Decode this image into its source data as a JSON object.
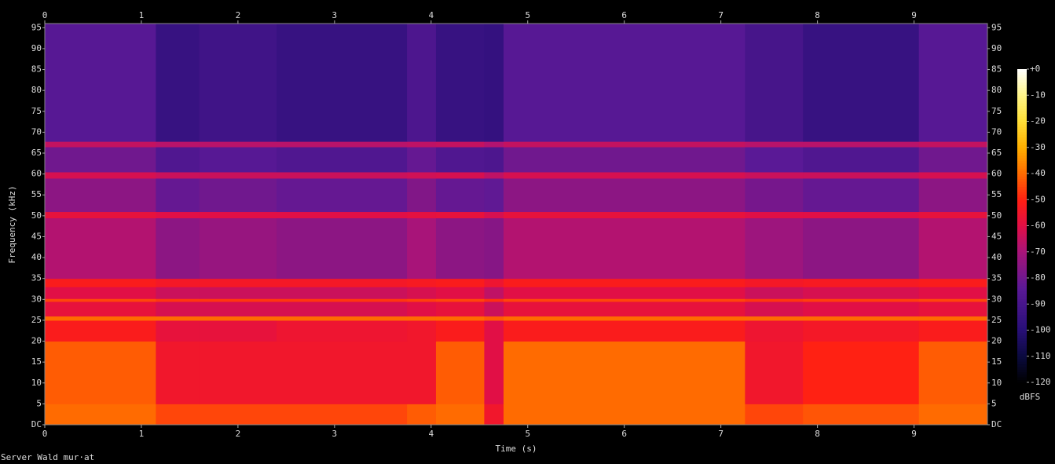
{
  "chart_data": {
    "type": "heatmap",
    "title": "Server Wald mur·at",
    "x_label": "Time (s)",
    "y_label": "Frequency (kHz)",
    "colorbar_label": "dBFS",
    "xlim": [
      0,
      9.76
    ],
    "xticks": [
      0,
      1,
      2,
      3,
      4,
      5,
      6,
      7,
      8,
      9
    ],
    "ylim": [
      0,
      96
    ],
    "yticks": [
      {
        "value": 0,
        "label": "DC"
      },
      5,
      10,
      15,
      20,
      25,
      30,
      35,
      40,
      45,
      50,
      55,
      60,
      65,
      70,
      75,
      80,
      85,
      90,
      95
    ],
    "clim": [
      -120,
      0
    ],
    "cticks": [
      {
        "value": 0,
        "label": "+0"
      },
      -10,
      -20,
      -30,
      -40,
      -50,
      -60,
      -70,
      -80,
      -90,
      -100,
      -110,
      -120
    ],
    "x_bins": [
      0,
      1.15,
      1.6,
      2.4,
      3.75,
      4.05,
      4.55,
      4.75,
      7.25,
      7.85,
      9.05,
      9.76
    ],
    "y_bins": [
      0,
      5,
      20,
      25,
      26,
      29.5,
      30.2,
      33,
      35,
      49.5,
      51,
      59,
      60.5,
      66.5,
      67.8,
      96
    ],
    "z": [
      [
        -40,
        -45,
        -45,
        -45,
        -42,
        -40,
        -55,
        -40,
        -45,
        -43,
        -40
      ],
      [
        -42,
        -55,
        -55,
        -55,
        -55,
        -42,
        -60,
        -40,
        -55,
        -50,
        -42
      ],
      [
        -52,
        -58,
        -58,
        -56,
        -55,
        -52,
        -60,
        -52,
        -56,
        -54,
        -52
      ],
      [
        -40,
        -40,
        -40,
        -40,
        -40,
        -40,
        -42,
        -40,
        -40,
        -40,
        -40
      ],
      [
        -58,
        -62,
        -62,
        -62,
        -60,
        -58,
        -64,
        -58,
        -62,
        -60,
        -58
      ],
      [
        -45,
        -47,
        -47,
        -47,
        -46,
        -45,
        -48,
        -45,
        -47,
        -46,
        -45
      ],
      [
        -60,
        -64,
        -64,
        -64,
        -62,
        -60,
        -66,
        -60,
        -64,
        -62,
        -60
      ],
      [
        -52,
        -54,
        -54,
        -54,
        -53,
        -52,
        -56,
        -52,
        -54,
        -53,
        -52
      ],
      [
        -68,
        -75,
        -73,
        -75,
        -70,
        -75,
        -76,
        -68,
        -72,
        -75,
        -68
      ],
      [
        -58,
        -60,
        -60,
        -60,
        -59,
        -58,
        -62,
        -58,
        -60,
        -60,
        -58
      ],
      [
        -75,
        -82,
        -80,
        -82,
        -77,
        -82,
        -83,
        -75,
        -79,
        -82,
        -75
      ],
      [
        -62,
        -64,
        -64,
        -64,
        -63,
        -62,
        -66,
        -62,
        -64,
        -64,
        -62
      ],
      [
        -80,
        -87,
        -85,
        -87,
        -82,
        -87,
        -88,
        -80,
        -84,
        -87,
        -80
      ],
      [
        -65,
        -67,
        -67,
        -67,
        -66,
        -65,
        -68,
        -65,
        -67,
        -67,
        -65
      ],
      [
        -85,
        -95,
        -92,
        -95,
        -88,
        -95,
        -96,
        -85,
        -90,
        -95,
        -85
      ]
    ]
  }
}
